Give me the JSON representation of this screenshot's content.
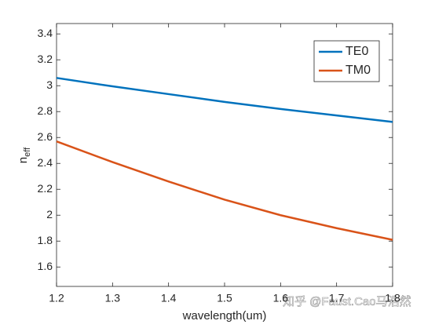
{
  "chart_data": {
    "type": "line",
    "xlabel": "wavelength(um)",
    "ylabel": "n",
    "ylabel_subscript": "eff",
    "x": [
      1.2,
      1.3,
      1.4,
      1.5,
      1.6,
      1.7,
      1.8
    ],
    "series": [
      {
        "name": "TE0",
        "color": "#0072BD",
        "values": [
          3.06,
          2.995,
          2.935,
          2.875,
          2.82,
          2.77,
          2.72
        ]
      },
      {
        "name": "TM0",
        "color": "#D95319",
        "values": [
          2.57,
          2.41,
          2.26,
          2.12,
          2.0,
          1.9,
          1.81
        ]
      }
    ],
    "xlim": [
      1.2,
      1.8
    ],
    "xticks": [
      1.2,
      1.3,
      1.4,
      1.5,
      1.6,
      1.7,
      1.8
    ],
    "ylim": [
      1.45,
      3.48
    ],
    "yticks": [
      1.6,
      1.8,
      2,
      2.2,
      2.4,
      2.6,
      2.8,
      3,
      3.2,
      3.4
    ],
    "grid": false,
    "legend": "top-right",
    "watermark": "知乎 @Faust.Cao马浩然"
  }
}
